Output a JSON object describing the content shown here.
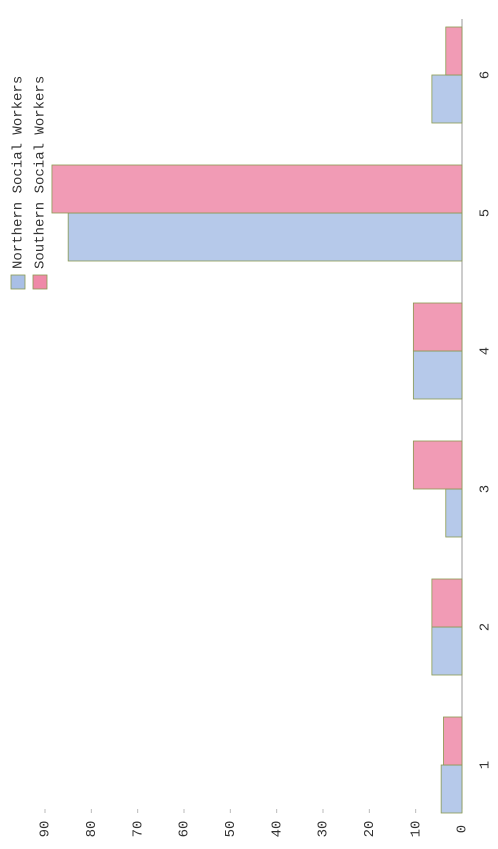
{
  "chart_data": {
    "type": "bar",
    "categories": [
      "1",
      "2",
      "3",
      "4",
      "5",
      "6"
    ],
    "series": [
      {
        "name": "Northern Social Workers",
        "color": "#a9bfe6",
        "values": [
          4.5,
          6.5,
          3.5,
          10.5,
          85,
          6.5
        ]
      },
      {
        "name": "Southern Social Workers",
        "color": "#ef8aa8",
        "values": [
          4,
          6.5,
          10.5,
          10.5,
          88.5,
          3.5
        ]
      }
    ],
    "ylim": [
      0,
      90
    ],
    "yticks": [
      0,
      10,
      20,
      30,
      40,
      50,
      60,
      70,
      80,
      90
    ],
    "legend": "upper right"
  }
}
